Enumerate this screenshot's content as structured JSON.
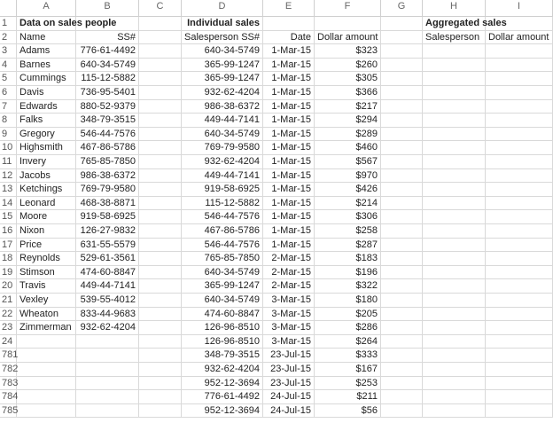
{
  "columns": [
    "A",
    "B",
    "C",
    "D",
    "E",
    "F",
    "G",
    "H",
    "I"
  ],
  "rows": [
    {
      "num": "1",
      "cells": [
        "Data on sales people",
        null,
        null,
        "Individual sales",
        null,
        null,
        null,
        "Aggregated sales",
        null
      ]
    },
    {
      "num": "2",
      "cells": [
        "Name",
        "SS#",
        null,
        "Salesperson SS#",
        "Date",
        "Dollar amount",
        null,
        "Salesperson",
        "Dollar amount"
      ]
    },
    {
      "num": "3",
      "cells": [
        "Adams",
        "776-61-4492",
        null,
        "640-34-5749",
        "1-Mar-15",
        "$323",
        null,
        null,
        null
      ]
    },
    {
      "num": "4",
      "cells": [
        "Barnes",
        "640-34-5749",
        null,
        "365-99-1247",
        "1-Mar-15",
        "$260",
        null,
        null,
        null
      ]
    },
    {
      "num": "5",
      "cells": [
        "Cummings",
        "115-12-5882",
        null,
        "365-99-1247",
        "1-Mar-15",
        "$305",
        null,
        null,
        null
      ]
    },
    {
      "num": "6",
      "cells": [
        "Davis",
        "736-95-5401",
        null,
        "932-62-4204",
        "1-Mar-15",
        "$366",
        null,
        null,
        null
      ]
    },
    {
      "num": "7",
      "cells": [
        "Edwards",
        "880-52-9379",
        null,
        "986-38-6372",
        "1-Mar-15",
        "$217",
        null,
        null,
        null
      ]
    },
    {
      "num": "8",
      "cells": [
        "Falks",
        "348-79-3515",
        null,
        "449-44-7141",
        "1-Mar-15",
        "$294",
        null,
        null,
        null
      ]
    },
    {
      "num": "9",
      "cells": [
        "Gregory",
        "546-44-7576",
        null,
        "640-34-5749",
        "1-Mar-15",
        "$289",
        null,
        null,
        null
      ]
    },
    {
      "num": "10",
      "cells": [
        "Highsmith",
        "467-86-5786",
        null,
        "769-79-9580",
        "1-Mar-15",
        "$460",
        null,
        null,
        null
      ]
    },
    {
      "num": "11",
      "cells": [
        "Invery",
        "765-85-7850",
        null,
        "932-62-4204",
        "1-Mar-15",
        "$567",
        null,
        null,
        null
      ]
    },
    {
      "num": "12",
      "cells": [
        "Jacobs",
        "986-38-6372",
        null,
        "449-44-7141",
        "1-Mar-15",
        "$970",
        null,
        null,
        null
      ]
    },
    {
      "num": "13",
      "cells": [
        "Ketchings",
        "769-79-9580",
        null,
        "919-58-6925",
        "1-Mar-15",
        "$426",
        null,
        null,
        null
      ]
    },
    {
      "num": "14",
      "cells": [
        "Leonard",
        "468-38-8871",
        null,
        "115-12-5882",
        "1-Mar-15",
        "$214",
        null,
        null,
        null
      ]
    },
    {
      "num": "15",
      "cells": [
        "Moore",
        "919-58-6925",
        null,
        "546-44-7576",
        "1-Mar-15",
        "$306",
        null,
        null,
        null
      ]
    },
    {
      "num": "16",
      "cells": [
        "Nixon",
        "126-27-9832",
        null,
        "467-86-5786",
        "1-Mar-15",
        "$258",
        null,
        null,
        null
      ]
    },
    {
      "num": "17",
      "cells": [
        "Price",
        "631-55-5579",
        null,
        "546-44-7576",
        "1-Mar-15",
        "$287",
        null,
        null,
        null
      ]
    },
    {
      "num": "18",
      "cells": [
        "Reynolds",
        "529-61-3561",
        null,
        "765-85-7850",
        "2-Mar-15",
        "$183",
        null,
        null,
        null
      ]
    },
    {
      "num": "19",
      "cells": [
        "Stimson",
        "474-60-8847",
        null,
        "640-34-5749",
        "2-Mar-15",
        "$196",
        null,
        null,
        null
      ]
    },
    {
      "num": "20",
      "cells": [
        "Travis",
        "449-44-7141",
        null,
        "365-99-1247",
        "2-Mar-15",
        "$322",
        null,
        null,
        null
      ]
    },
    {
      "num": "21",
      "cells": [
        "Vexley",
        "539-55-4012",
        null,
        "640-34-5749",
        "3-Mar-15",
        "$180",
        null,
        null,
        null
      ]
    },
    {
      "num": "22",
      "cells": [
        "Wheaton",
        "833-44-9683",
        null,
        "474-60-8847",
        "3-Mar-15",
        "$205",
        null,
        null,
        null
      ]
    },
    {
      "num": "23",
      "cells": [
        "Zimmerman",
        "932-62-4204",
        null,
        "126-96-8510",
        "3-Mar-15",
        "$286",
        null,
        null,
        null
      ]
    },
    {
      "num": "24",
      "cells": [
        null,
        null,
        null,
        "126-96-8510",
        "3-Mar-15",
        "$264",
        null,
        null,
        null
      ]
    },
    {
      "num": "781",
      "cells": [
        null,
        null,
        null,
        "348-79-3515",
        "23-Jul-15",
        "$333",
        null,
        null,
        null
      ]
    },
    {
      "num": "782",
      "cells": [
        null,
        null,
        null,
        "932-62-4204",
        "23-Jul-15",
        "$167",
        null,
        null,
        null
      ]
    },
    {
      "num": "783",
      "cells": [
        null,
        null,
        null,
        "952-12-3694",
        "23-Jul-15",
        "$253",
        null,
        null,
        null
      ]
    },
    {
      "num": "784",
      "cells": [
        null,
        null,
        null,
        "776-61-4492",
        "24-Jul-15",
        "$211",
        null,
        null,
        null
      ]
    },
    {
      "num": "785",
      "cells": [
        null,
        null,
        null,
        "952-12-3694",
        "24-Jul-15",
        "$56",
        null,
        null,
        null
      ]
    }
  ]
}
